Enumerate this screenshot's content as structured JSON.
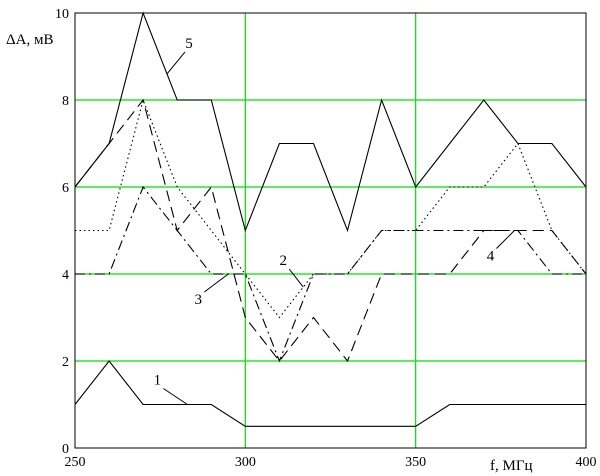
{
  "chart_data": {
    "type": "line",
    "title": "",
    "xlabel": "f, МГц",
    "ylabel": "ΔА, мВ",
    "xlim": [
      250,
      400
    ],
    "ylim": [
      0,
      10
    ],
    "grid": true,
    "grid_color": "#00e000",
    "x_ticks": [
      {
        "value": 250,
        "label": "250"
      },
      {
        "value": 300,
        "label": "300"
      },
      {
        "value": 350,
        "label": "350"
      },
      {
        "value": 400,
        "label": "400"
      }
    ],
    "y_ticks": [
      {
        "value": 0,
        "label": "0"
      },
      {
        "value": 2,
        "label": "2"
      },
      {
        "value": 4,
        "label": "4"
      },
      {
        "value": 6,
        "label": "6"
      },
      {
        "value": 8,
        "label": "8"
      },
      {
        "value": 10,
        "label": "10"
      }
    ],
    "series": [
      {
        "name": "1",
        "dash": "solid",
        "x": [
          250,
          260,
          270,
          280,
          290,
          300,
          310,
          320,
          330,
          340,
          350,
          360,
          370,
          380,
          390,
          400
        ],
        "y": [
          1,
          2,
          1,
          1,
          1,
          0.5,
          0.5,
          0.5,
          0.5,
          0.5,
          0.5,
          1,
          1,
          1,
          1,
          1
        ]
      },
      {
        "name": "2",
        "dash": "dot",
        "x": [
          250,
          260,
          270,
          280,
          290,
          300,
          310,
          320,
          330,
          340,
          350,
          360,
          370,
          380,
          390,
          400
        ],
        "y": [
          5,
          5,
          8,
          6,
          5,
          4,
          3,
          4,
          4,
          5,
          5,
          6,
          6,
          7,
          5,
          4
        ]
      },
      {
        "name": "3",
        "dash": "dashdot",
        "x": [
          250,
          260,
          270,
          280,
          290,
          300,
          310,
          320,
          330,
          340,
          350,
          360,
          370,
          380,
          390,
          400
        ],
        "y": [
          4,
          4,
          6,
          5,
          4,
          4,
          2,
          4,
          4,
          5,
          5,
          5,
          5,
          5,
          4,
          4
        ]
      },
      {
        "name": "4",
        "dash": "dash",
        "x": [
          250,
          260,
          270,
          280,
          290,
          300,
          310,
          320,
          330,
          340,
          350,
          360,
          370,
          380,
          390,
          400
        ],
        "y": [
          6,
          7,
          8,
          5,
          6,
          3,
          2,
          3,
          2,
          4,
          4,
          4,
          5,
          5,
          5,
          4
        ]
      },
      {
        "name": "5",
        "dash": "solid",
        "x": [
          250,
          260,
          270,
          280,
          290,
          300,
          310,
          320,
          330,
          340,
          350,
          360,
          370,
          380,
          390,
          400
        ],
        "y": [
          6,
          7,
          10,
          8,
          8,
          5,
          7,
          7,
          5,
          8,
          6,
          7,
          8,
          7,
          7,
          6
        ]
      }
    ],
    "annotations": [
      {
        "text": "5",
        "series": "5",
        "at_x": 277
      },
      {
        "text": "2",
        "series": "2",
        "at_x": 317
      },
      {
        "text": "3",
        "series": "3",
        "at_x": 295
      },
      {
        "text": "4",
        "series": "4",
        "at_x": 379
      },
      {
        "text": "1",
        "series": "1",
        "at_x": 283
      }
    ]
  }
}
